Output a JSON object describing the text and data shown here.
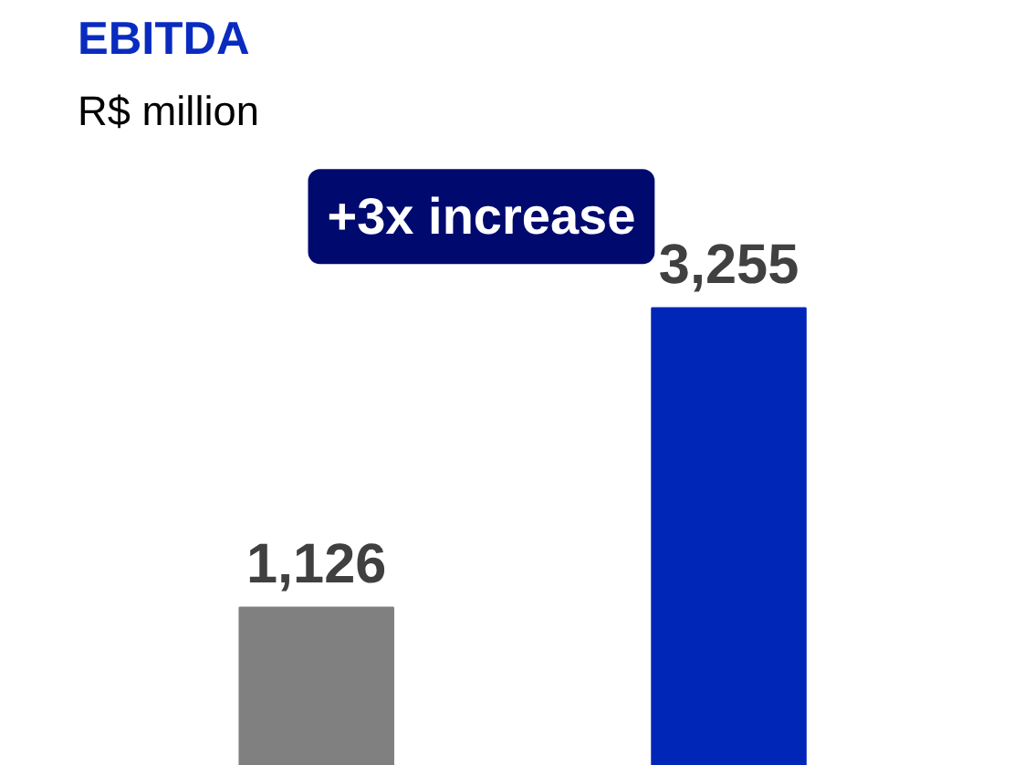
{
  "chart_data": {
    "type": "bar",
    "title": "EBITDA",
    "subtitle": "R$ million",
    "categories": [
      null,
      null
    ],
    "values": [
      1126,
      3255
    ],
    "colors": [
      "#808080",
      "#0026b8"
    ],
    "value_labels": [
      "1,126",
      "3,255"
    ],
    "annotations": [
      "+3x increase"
    ],
    "grid": false
  }
}
